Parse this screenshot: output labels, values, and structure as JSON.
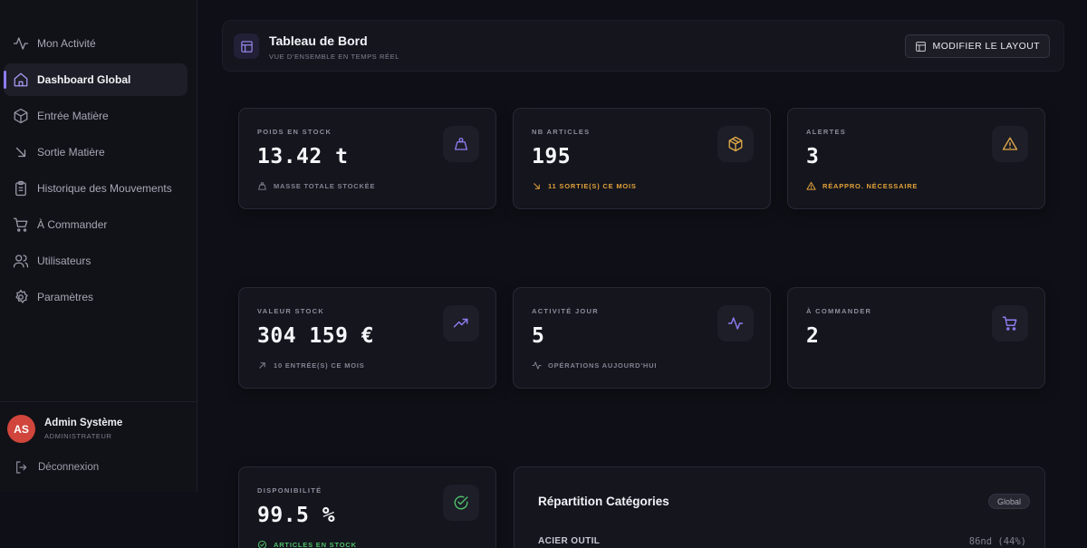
{
  "sidebar": {
    "items": [
      {
        "label": "Mon Activité",
        "icon": "activity-icon"
      },
      {
        "label": "Dashboard Global",
        "icon": "home-icon"
      },
      {
        "label": "Entrée Matière",
        "icon": "box-icon"
      },
      {
        "label": "Sortie Matière",
        "icon": "arrow-down-right-icon"
      },
      {
        "label": "Historique des Mouvements",
        "icon": "clipboard-icon"
      },
      {
        "label": "À Commander",
        "icon": "cart-icon"
      },
      {
        "label": "Utilisateurs",
        "icon": "users-icon"
      },
      {
        "label": "Paramètres",
        "icon": "gear-icon"
      }
    ],
    "active_index": 1,
    "user": {
      "initials": "AS",
      "name": "Admin Système",
      "role": "ADMINISTRATEUR"
    },
    "logout_label": "Déconnexion"
  },
  "header": {
    "title": "Tableau de Bord",
    "subtitle": "VUE D'ENSEMBLE EN TEMPS RÉEL",
    "layout_button": "MODIFIER LE LAYOUT"
  },
  "kpis": [
    {
      "label": "POIDS EN STOCK",
      "value": "13.42 t",
      "sub": "MASSE TOTALE STOCKÉE",
      "icon": "weight-icon",
      "icon_color": "#8f7cf3",
      "sub_tone": "muted"
    },
    {
      "label": "NB ARTICLES",
      "value": "195",
      "sub": "11 SORTIE(S) CE MOIS",
      "icon": "package-icon",
      "icon_color": "#e0a94a",
      "sub_tone": "warn"
    },
    {
      "label": "ALERTES",
      "value": "3",
      "sub": "RÉAPPRO. NÉCESSAIRE",
      "icon": "warning-icon",
      "icon_color": "#e0a94a",
      "sub_tone": "warn"
    },
    {
      "label": "VALEUR STOCK",
      "value": "304 159 €",
      "sub": "10 ENTRÉE(S) CE MOIS",
      "icon": "trending-up-icon",
      "icon_color": "#8f7cf3",
      "sub_tone": "muted"
    },
    {
      "label": "ACTIVITÉ JOUR",
      "value": "5",
      "sub": "OPÉRATIONS AUJOURD'HUI",
      "icon": "activity-icon",
      "icon_color": "#8f7cf3",
      "sub_tone": "muted"
    },
    {
      "label": "À COMMANDER",
      "value": "2",
      "sub": "",
      "icon": "cart-icon",
      "icon_color": "#8f7cf3",
      "sub_tone": "muted"
    },
    {
      "label": "DISPONIBILITÉ",
      "value": "99.5 %",
      "sub": "ARTICLES EN STOCK",
      "icon": "check-circle-icon",
      "icon_color": "#4fbf6a",
      "sub_tone": "ok"
    }
  ],
  "categories": {
    "title": "Répartition Catégories",
    "badge": "Global",
    "rows": [
      {
        "name": "ACIER OUTIL",
        "value": "86nd (44%)"
      }
    ]
  }
}
